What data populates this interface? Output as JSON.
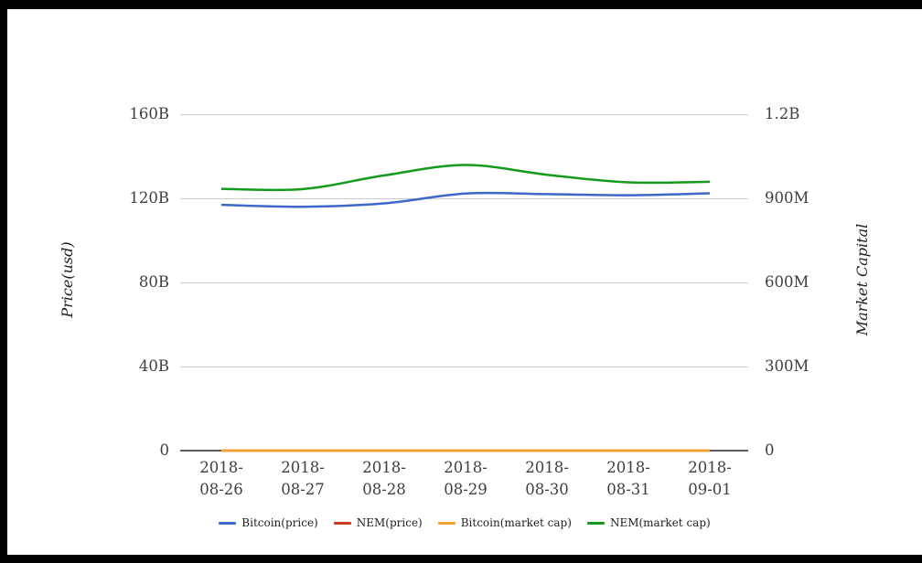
{
  "chart": {
    "left_axis": {
      "title": "Price(usd)",
      "tick_labels": [
        "160B",
        "120B",
        "80B",
        "40B",
        "0"
      ],
      "range_billions": [
        0,
        160
      ]
    },
    "right_axis": {
      "title": "Market Capital",
      "tick_labels": [
        "1.2B",
        "900M",
        "600M",
        "300M",
        "0"
      ],
      "range_millions": [
        0,
        1200
      ]
    },
    "x_axis": {
      "labels": [
        "2018-08-26",
        "2018-08-27",
        "2018-08-28",
        "2018-08-29",
        "2018-08-30",
        "2018-08-31",
        "2018-09-01"
      ]
    },
    "legend": [
      {
        "label": "Bitcoin(price)",
        "color": "#3E68C8"
      },
      {
        "label": "NEM(price)",
        "color": "#CC3B20"
      },
      {
        "label": "Bitcoin(market cap)",
        "color": "#F0A22C"
      },
      {
        "label": "NEM(market cap)",
        "color": "#149A1C"
      }
    ],
    "colors": {
      "gridline": "#cccccc",
      "baseline": "#2f2f2f",
      "background": "#ffffff",
      "frame": "#000000"
    }
  },
  "chart_data": {
    "type": "line",
    "title": "",
    "x": [
      "2018-08-26",
      "2018-08-27",
      "2018-08-28",
      "2018-08-29",
      "2018-08-30",
      "2018-08-31",
      "2018-09-01"
    ],
    "series": [
      {
        "name": "Bitcoin(price)",
        "color": "#3E68C8",
        "axis": "left",
        "unit": "B",
        "values": [
          116.9,
          116.0,
          117.6,
          122.3,
          122.0,
          121.5,
          122.4
        ]
      },
      {
        "name": "NEM(price)",
        "color": "#CC3B20",
        "axis": "left",
        "unit": "B",
        "values": [
          0,
          0,
          0,
          0,
          0,
          0,
          0
        ]
      },
      {
        "name": "Bitcoin(market cap)",
        "color": "#F0A22C",
        "axis": "left",
        "unit": "B",
        "values": [
          0,
          0,
          0,
          0,
          0,
          0,
          0
        ]
      },
      {
        "name": "NEM(market cap)",
        "color": "#149A1C",
        "axis": "right",
        "unit": "M",
        "values": [
          934,
          933,
          982,
          1019,
          984,
          957,
          959
        ]
      }
    ],
    "ylabel_left": "Price(usd)",
    "ylabel_right": "Market Capital",
    "ylim_left_billions": [
      0,
      160
    ],
    "ylim_right_millions": [
      0,
      1200
    ],
    "grid": true,
    "legend_position": "bottom",
    "curve": "smooth"
  }
}
